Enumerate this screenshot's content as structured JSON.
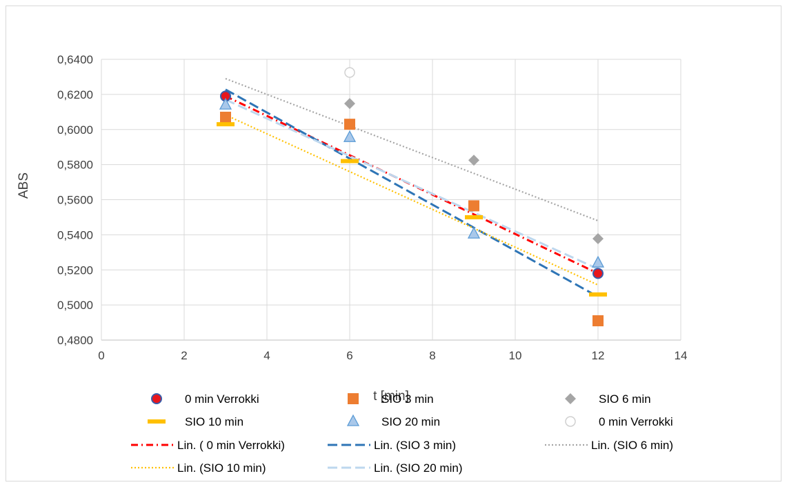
{
  "chart_data": {
    "type": "scatter",
    "xlabel": "t [min]",
    "ylabel": "ABS",
    "xlim": [
      0,
      14
    ],
    "ylim": [
      0.48,
      0.64
    ],
    "x_ticks": [
      0,
      2,
      4,
      6,
      8,
      10,
      12,
      14
    ],
    "x_tick_labels": [
      "0",
      "2",
      "4",
      "6",
      "8",
      "10",
      "12",
      "14"
    ],
    "y_ticks": [
      0.48,
      0.5,
      0.52,
      0.54,
      0.56,
      0.58,
      0.6,
      0.62,
      0.64
    ],
    "y_tick_labels": [
      "0,4800",
      "0,5000",
      "0,5200",
      "0,5400",
      "0,5600",
      "0,5800",
      "0,6000",
      "0,6200",
      "0,6400"
    ],
    "grid": true,
    "legend_position": "bottom",
    "series": [
      {
        "name": " 0 min Verrokki",
        "marker": "circle",
        "color": "#e8161c",
        "edge": "#3a5ba8",
        "x": [
          3,
          12
        ],
        "y": [
          0.619,
          0.518
        ]
      },
      {
        "name": "SIO 3 min",
        "marker": "square",
        "color": "#ed7d31",
        "x": [
          3,
          6,
          9,
          12
        ],
        "y": [
          0.607,
          0.603,
          0.5565,
          0.491
        ]
      },
      {
        "name": "SIO 6 min",
        "marker": "diamond",
        "color": "#a5a5a5",
        "x": [
          6,
          9,
          12
        ],
        "y": [
          0.6148,
          0.5825,
          0.5378
        ]
      },
      {
        "name": "SIO 10 min",
        "marker": "dash",
        "color": "#ffc000",
        "x": [
          3,
          6,
          9,
          12
        ],
        "y": [
          0.603,
          0.582,
          0.55,
          0.506
        ]
      },
      {
        "name": "SIO 20 min",
        "marker": "triangle",
        "color": "#a9c8ea",
        "edge": "#5b9bd5",
        "x": [
          3,
          6,
          9,
          12
        ],
        "y": [
          0.614,
          0.5955,
          0.5405,
          0.524
        ]
      },
      {
        "name": " 0 min Verrokki",
        "marker": "open-circle",
        "color": "#d0d0d0",
        "x": [
          6
        ],
        "y": [
          0.6325
        ]
      }
    ],
    "trendlines": [
      {
        "name": "Lin. ( 0 min Verrokki)",
        "color": "#ff0000",
        "dash": "dashdot",
        "x": [
          3,
          12
        ],
        "y": [
          0.619,
          0.518
        ]
      },
      {
        "name": "Lin. (SIO 3 min)",
        "color": "#2e75b6",
        "dash": "longdash",
        "x": [
          3,
          12
        ],
        "y": [
          0.6228,
          0.5047
        ]
      },
      {
        "name": "Lin. (SIO 6 min)",
        "color": "#a5a5a5",
        "dash": "dot",
        "x": [
          3,
          12
        ],
        "y": [
          0.629,
          0.548
        ]
      },
      {
        "name": "Lin. (SIO 10 min)",
        "color": "#ffc000",
        "dash": "dot",
        "x": [
          3,
          12
        ],
        "y": [
          0.6083,
          0.5114
        ]
      },
      {
        "name": "Lin. (SIO 20 min)",
        "color": "#bdd7ee",
        "dash": "longdash",
        "x": [
          3,
          12
        ],
        "y": [
          0.617,
          0.5205
        ]
      }
    ]
  }
}
